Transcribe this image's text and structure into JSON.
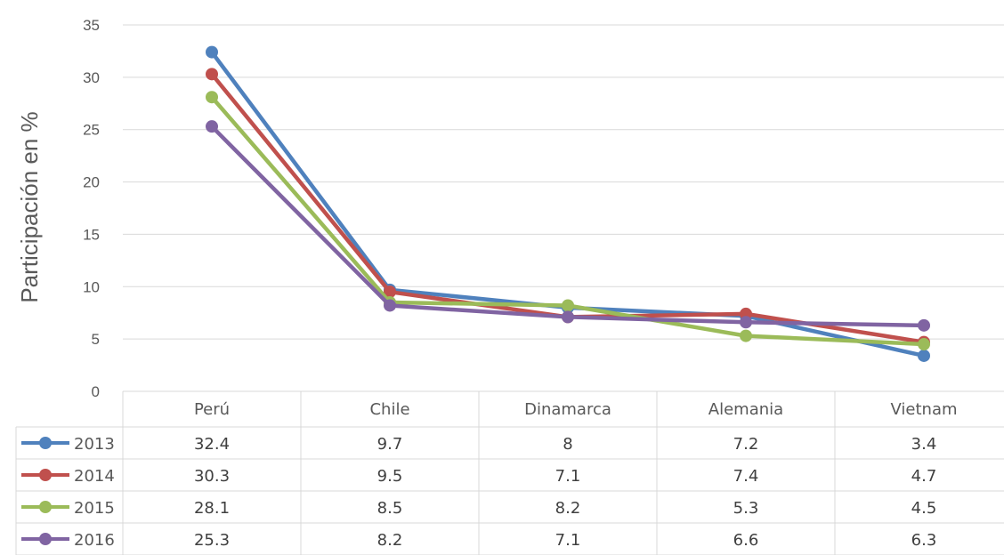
{
  "chart_data": {
    "type": "line",
    "ylabel": "Participación en %",
    "ylim": [
      0,
      35
    ],
    "yticks": [
      0,
      5,
      10,
      15,
      20,
      25,
      30,
      35
    ],
    "categories": [
      "Perú",
      "Chile",
      "Dinamarca",
      "Alemania",
      "Vietnam"
    ],
    "series": [
      {
        "name": "2013",
        "color": "#4f81bd",
        "values": [
          32.4,
          9.7,
          8,
          7.2,
          3.4
        ],
        "labels": [
          "32.4",
          "9.7",
          "8",
          "7.2",
          "3.4"
        ]
      },
      {
        "name": "2014",
        "color": "#c0504d",
        "values": [
          30.3,
          9.5,
          7.1,
          7.4,
          4.7
        ],
        "labels": [
          "30.3",
          "9.5",
          "7.1",
          "7.4",
          "4.7"
        ]
      },
      {
        "name": "2015",
        "color": "#9bbb59",
        "values": [
          28.1,
          8.5,
          8.2,
          5.3,
          4.5
        ],
        "labels": [
          "28.1",
          "8.5",
          "8.2",
          "5.3",
          "4.5"
        ]
      },
      {
        "name": "2016",
        "color": "#8064a2",
        "values": [
          25.3,
          8.2,
          7.1,
          6.6,
          6.3
        ],
        "labels": [
          "25.3",
          "8.2",
          "7.1",
          "6.6",
          "6.3"
        ]
      }
    ],
    "grid": true,
    "legend": "data-table"
  }
}
